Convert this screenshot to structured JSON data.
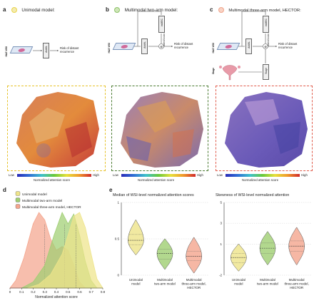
{
  "panels": {
    "a": {
      "letter": "a",
      "title": "Unimodal model:",
      "color": "#e8d44a",
      "frame": "#e6c22a",
      "wsi": "H&E WSI",
      "abmil": "AbMIL",
      "risk": "Risk of distant recurrence"
    },
    "b": {
      "letter": "b",
      "title": "Multimodal two-arm model:",
      "color": "#8dc26a",
      "frame": "#4a7a30",
      "wsi": "H&E WSI",
      "abmil": "AbMIL",
      "immgen": "imMEC",
      "gated": "Gated fusion",
      "risk": "Risk of distant recurrence"
    },
    "c": {
      "letter": "c",
      "title": "Multimodal three-arm model, HECTOR:",
      "color": "#f0a58a",
      "frame": "#e05a4a",
      "wsi": "H&E WSI",
      "abmil": "AbMIL",
      "immgen": "imMEC",
      "gated": "Gated fusion",
      "stage": "Stage",
      "stage_box": "Stage",
      "risk": "Risk of distant recurrence"
    }
  },
  "colorbar": {
    "low": "Low",
    "high": "High",
    "label": "Normalized attention score"
  },
  "panel_d": {
    "letter": "d",
    "legend": [
      "Unimodal model",
      "Multimodal two-arm model",
      "Multimodal three-arm model, HECTOR"
    ],
    "colors": [
      "#eee48a",
      "#9fce72",
      "#f4a58d"
    ]
  },
  "panel_e": {
    "letter": "e"
  },
  "chart_data": [
    {
      "type": "area",
      "xlabel": "Normalized attention score",
      "ylabel": "",
      "xticks": [
        "0",
        "0.1",
        "0.2",
        "0.3",
        "0.4",
        "0.5",
        "0.6",
        "0.7",
        "0.8"
      ],
      "xlim": [
        0,
        0.8
      ],
      "series": [
        {
          "name": "Unimodal model",
          "color": "#eee48a",
          "x": [
            0.15,
            0.25,
            0.35,
            0.45,
            0.5,
            0.55,
            0.6,
            0.65,
            0.7,
            0.75,
            0.8
          ],
          "y": [
            0,
            0.05,
            0.18,
            0.45,
            0.7,
            0.95,
            1.0,
            0.8,
            0.45,
            0.12,
            0
          ],
          "median": 0.57
        },
        {
          "name": "Multimodal two-arm model",
          "color": "#9fce72",
          "x": [
            0.1,
            0.2,
            0.3,
            0.38,
            0.45,
            0.5,
            0.55,
            0.6,
            0.65,
            0.7,
            0.75
          ],
          "y": [
            0,
            0.08,
            0.3,
            0.7,
            1.0,
            0.85,
            0.98,
            0.7,
            0.35,
            0.1,
            0
          ],
          "median": 0.47
        },
        {
          "name": "Multimodal three-arm model, HECTOR",
          "color": "#f4a58d",
          "x": [
            0,
            0.05,
            0.12,
            0.2,
            0.25,
            0.3,
            0.35,
            0.4,
            0.45,
            0.5,
            0.55,
            0.6,
            0.65
          ],
          "y": [
            0,
            0.1,
            0.4,
            0.85,
            1.0,
            0.9,
            0.65,
            0.5,
            0.55,
            0.5,
            0.3,
            0.08,
            0
          ],
          "median": 0.3
        }
      ]
    },
    {
      "type": "violin",
      "title": "Median of WSI-level normalized attention scores",
      "categories": [
        "Unimodal model",
        "Multimodal two-arm model",
        "Multimodal three-arm model, HECTOR"
      ],
      "yticks": [
        "0",
        "0.5",
        "1"
      ],
      "ylim": [
        0,
        1
      ],
      "series": [
        {
          "name": "Unimodal model",
          "color": "#eee48a",
          "min": 0.28,
          "q1": 0.42,
          "median": 0.48,
          "q3": 0.56,
          "max": 0.76
        },
        {
          "name": "Multimodal two-arm model",
          "color": "#9fce72",
          "min": 0.08,
          "q1": 0.22,
          "median": 0.3,
          "q3": 0.36,
          "max": 0.5
        },
        {
          "name": "Multimodal three-arm model, HECTOR",
          "color": "#f4a58d",
          "min": 0.03,
          "q1": 0.2,
          "median": 0.26,
          "q3": 0.33,
          "max": 0.52
        }
      ]
    },
    {
      "type": "violin",
      "title": "Skewness of WSI-level normalized attention",
      "categories": [
        "Unimodal model",
        "Multimodal two-arm model",
        "Multimodal three-arm model, HECTOR"
      ],
      "yticks": [
        "-2",
        "1",
        "3",
        "5"
      ],
      "ylim": [
        -2,
        5
      ],
      "series": [
        {
          "name": "Unimodal model",
          "color": "#eee48a",
          "min": -1.6,
          "q1": -0.8,
          "median": -0.3,
          "q3": 0.1,
          "max": 1.0
        },
        {
          "name": "Multimodal two-arm model",
          "color": "#9fce72",
          "min": -1.0,
          "q1": 0.1,
          "median": 0.6,
          "q3": 1.1,
          "max": 2.2
        },
        {
          "name": "Multimodal three-arm model, HECTOR",
          "color": "#f4a58d",
          "min": -1.0,
          "q1": 0.3,
          "median": 0.8,
          "q3": 1.3,
          "max": 2.6
        }
      ]
    }
  ]
}
